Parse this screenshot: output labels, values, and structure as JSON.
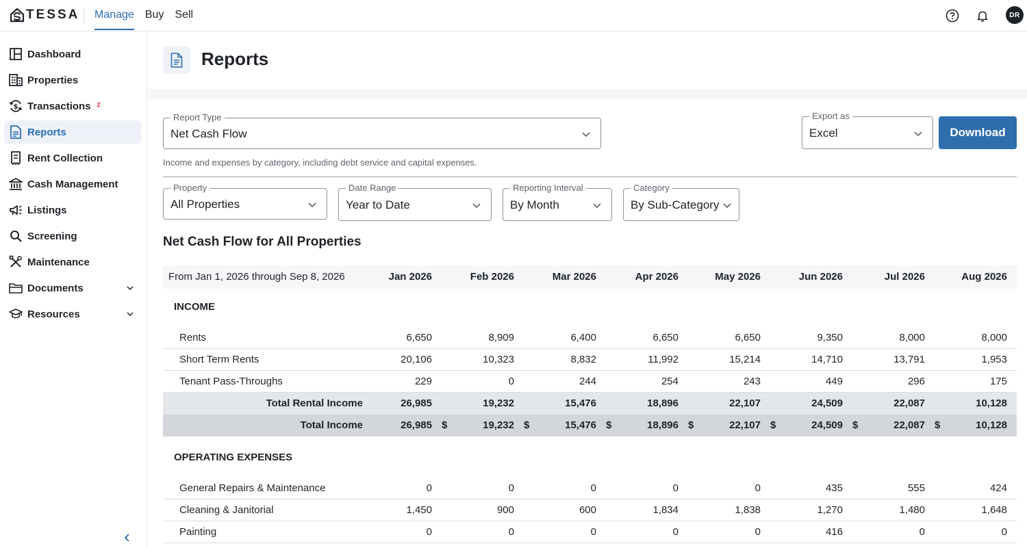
{
  "app": {
    "logo_text": "TESSA",
    "nav": [
      {
        "label": "Manage",
        "active": true
      },
      {
        "label": "Buy",
        "active": false
      },
      {
        "label": "Sell",
        "active": false
      }
    ],
    "avatar_initials": "DR",
    "accent_color": "#2a6cb4"
  },
  "sidebar": {
    "items": [
      {
        "label": "Dashboard",
        "icon": "dashboard-icon"
      },
      {
        "label": "Properties",
        "icon": "building-icon"
      },
      {
        "label": "Transactions",
        "icon": "transactions-icon",
        "badge": "2"
      },
      {
        "label": "Reports",
        "icon": "document-icon",
        "active": true
      },
      {
        "label": "Rent Collection",
        "icon": "receipt-icon"
      },
      {
        "label": "Cash Management",
        "icon": "bank-icon"
      },
      {
        "label": "Listings",
        "icon": "megaphone-icon"
      },
      {
        "label": "Screening",
        "icon": "search-icon"
      },
      {
        "label": "Maintenance",
        "icon": "tools-icon"
      },
      {
        "label": "Documents",
        "icon": "folder-icon",
        "expandable": true
      },
      {
        "label": "Resources",
        "icon": "graduation-cap-icon",
        "expandable": true
      }
    ]
  },
  "page": {
    "title": "Reports"
  },
  "controls": {
    "report_type": {
      "label": "Report Type",
      "value": "Net Cash Flow"
    },
    "export_as": {
      "label": "Export as",
      "value": "Excel"
    },
    "download_label": "Download",
    "description": "Income and expenses by category, including debt service and capital expenses.",
    "property": {
      "label": "Property",
      "value": "All Properties"
    },
    "date_range": {
      "label": "Date Range",
      "value": "Year to Date"
    },
    "interval": {
      "label": "Reporting Interval",
      "value": "By Month"
    },
    "category": {
      "label": "Category",
      "value": "By Sub-Category"
    }
  },
  "report": {
    "title": "Net Cash Flow for All Properties",
    "period_label": "From Jan 1, 2026 through Sep 8, 2026",
    "columns": [
      "Jan 2026",
      "Feb 2026",
      "Mar 2026",
      "Apr 2026",
      "May 2026",
      "Jun 2026",
      "Jul 2026",
      "Aug 2026"
    ],
    "currency_symbol": "$",
    "sections": [
      {
        "title": "INCOME",
        "rows": [
          {
            "label": "Rents",
            "values": [
              "6,650",
              "8,909",
              "6,400",
              "6,650",
              "6,650",
              "9,350",
              "8,000",
              "8,000"
            ]
          },
          {
            "label": "Short Term Rents",
            "values": [
              "20,106",
              "10,323",
              "8,832",
              "11,992",
              "15,214",
              "14,710",
              "13,791",
              "1,953"
            ]
          },
          {
            "label": "Tenant Pass-Throughs",
            "values": [
              "229",
              "0",
              "244",
              "254",
              "243",
              "449",
              "296",
              "175"
            ]
          }
        ],
        "subtotal": {
          "label": "Total Rental Income",
          "values": [
            "26,985",
            "19,232",
            "15,476",
            "18,896",
            "22,107",
            "24,509",
            "22,087",
            "10,128"
          ]
        },
        "total": {
          "label": "Total Income",
          "values": [
            "26,985",
            "19,232",
            "15,476",
            "18,896",
            "22,107",
            "24,509",
            "22,087",
            "10,128"
          ]
        }
      },
      {
        "title": "OPERATING EXPENSES",
        "rows": [
          {
            "label": "General Repairs & Maintenance",
            "values": [
              "0",
              "0",
              "0",
              "0",
              "0",
              "435",
              "555",
              "424"
            ]
          },
          {
            "label": "Cleaning & Janitorial",
            "values": [
              "1,450",
              "900",
              "600",
              "1,834",
              "1,838",
              "1,270",
              "1,480",
              "1,648"
            ]
          },
          {
            "label": "Painting",
            "values": [
              "0",
              "0",
              "0",
              "0",
              "0",
              "416",
              "0",
              "0"
            ]
          }
        ]
      }
    ]
  }
}
